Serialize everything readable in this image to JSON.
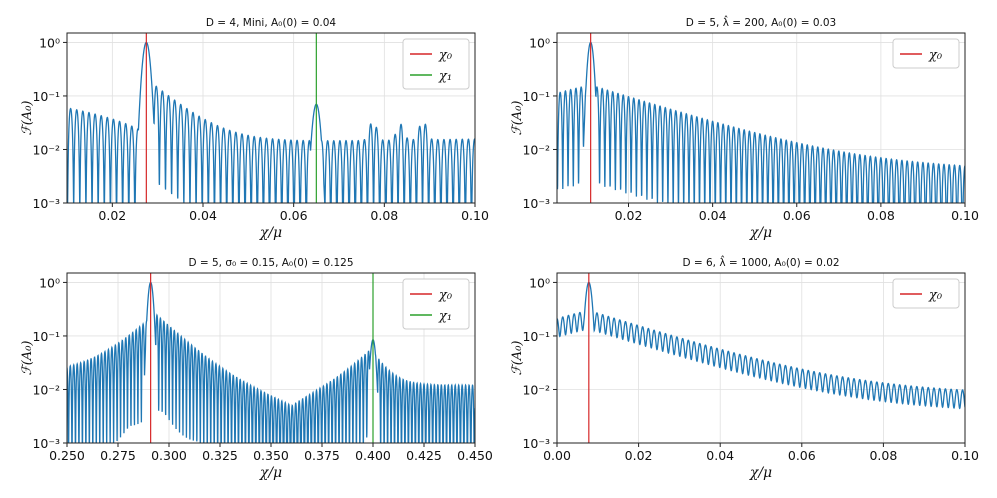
{
  "figure": {
    "description_free": true
  },
  "colors": {
    "series": "#1f77b4",
    "chi0": "#d62728",
    "chi1": "#2ca02c",
    "grid": "#e0e0e0"
  },
  "chart_data": [
    {
      "type": "line",
      "title": "D = 4, Mini, A₀(0) = 0.04",
      "xlabel": "χ/μ",
      "ylabel": "ℱ(A₀)",
      "yscale": "log",
      "xlim": [
        0.01,
        0.1
      ],
      "ylim": [
        0.001,
        1.5
      ],
      "xticks": [
        0.02,
        0.04,
        0.06,
        0.08,
        0.1
      ],
      "xtick_labels": [
        "0.02",
        "0.04",
        "0.06",
        "0.08",
        "0.10"
      ],
      "yticks": [
        0.001,
        0.01,
        0.1,
        1
      ],
      "ytick_labels": [
        "10⁻³",
        "10⁻²",
        "10⁻¹",
        "10⁰"
      ],
      "grid": true,
      "legend_position": "top-right",
      "vlines": [
        {
          "name": "χ₀",
          "x": 0.0275,
          "color": "#d62728"
        },
        {
          "name": "χ₁",
          "x": 0.065,
          "color": "#2ca02c"
        }
      ],
      "model": {
        "peaks": [
          {
            "x": 0.0275,
            "h": 1.0,
            "w": 0.0009
          },
          {
            "x": 0.065,
            "h": 0.07,
            "w": 0.0009
          }
        ],
        "floor_left": {
          "start": 0.06,
          "end": 0.02
        },
        "floor_right": 0.012,
        "period": 0.00135,
        "extra_bumps": [
          {
            "x": 0.0775,
            "h": 0.02,
            "w": 0.001
          },
          {
            "x": 0.0885,
            "h": 0.02,
            "w": 0.001
          },
          {
            "x": 0.0835,
            "h": 0.015,
            "w": 0.001
          }
        ]
      }
    },
    {
      "type": "line",
      "title": "D = 5, λ̂ = 200, A₀(0) = 0.03",
      "xlabel": "χ/μ",
      "ylabel": "ℱ(A₀)",
      "yscale": "log",
      "xlim": [
        0.003,
        0.1
      ],
      "ylim": [
        0.001,
        1.5
      ],
      "xticks": [
        0.02,
        0.04,
        0.06,
        0.08,
        0.1
      ],
      "xtick_labels": [
        "0.02",
        "0.04",
        "0.06",
        "0.08",
        "0.10"
      ],
      "yticks": [
        0.001,
        0.01,
        0.1,
        1
      ],
      "ytick_labels": [
        "10⁻³",
        "10⁻²",
        "10⁻¹",
        "10⁰"
      ],
      "grid": true,
      "legend_position": "top-right",
      "vlines": [
        {
          "name": "χ₀",
          "x": 0.011,
          "color": "#d62728"
        }
      ],
      "model": {
        "peaks": [
          {
            "x": 0.011,
            "h": 1.0,
            "w": 0.0008
          }
        ],
        "decay": {
          "start": 0.16,
          "end": 0.004
        },
        "period": 0.00125,
        "extra_bumps": []
      }
    },
    {
      "type": "line",
      "title": "D = 5, σ₀ = 0.15, A₀(0) = 0.125",
      "xlabel": "χ/μ",
      "ylabel": "ℱ(A₀)",
      "yscale": "log",
      "xlim": [
        0.25,
        0.45
      ],
      "ylim": [
        0.001,
        1.5
      ],
      "xticks": [
        0.25,
        0.275,
        0.3,
        0.325,
        0.35,
        0.375,
        0.4,
        0.425,
        0.45
      ],
      "xtick_labels": [
        "0.250",
        "0.275",
        "0.300",
        "0.325",
        "0.350",
        "0.375",
        "0.400",
        "0.425",
        "0.450"
      ],
      "yticks": [
        0.001,
        0.01,
        0.1,
        1
      ],
      "ytick_labels": [
        "10⁻³",
        "10⁻²",
        "10⁻¹",
        "10⁰"
      ],
      "grid": true,
      "legend_position": "top-right",
      "vlines": [
        {
          "name": "χ₀",
          "x": 0.291,
          "color": "#d62728"
        },
        {
          "name": "χ₁",
          "x": 0.4,
          "color": "#2ca02c"
        }
      ],
      "model": {
        "peaks": [
          {
            "x": 0.291,
            "h": 1.0,
            "w": 0.0015
          },
          {
            "x": 0.4,
            "h": 0.085,
            "w": 0.0015
          }
        ],
        "valley": {
          "x": 0.36,
          "h": 0.004
        },
        "period": 0.0017,
        "extra_bumps": []
      }
    },
    {
      "type": "line",
      "title": "D = 6, λ̂ = 1000, A₀(0) = 0.02",
      "xlabel": "χ/μ",
      "ylabel": "ℱ(A₀)",
      "yscale": "log",
      "xlim": [
        0.0,
        0.1
      ],
      "ylim": [
        0.001,
        1.5
      ],
      "xticks": [
        0.0,
        0.02,
        0.04,
        0.06,
        0.08,
        0.1
      ],
      "xtick_labels": [
        "0.00",
        "0.02",
        "0.04",
        "0.06",
        "0.08",
        "0.10"
      ],
      "yticks": [
        0.001,
        0.01,
        0.1,
        1
      ],
      "ytick_labels": [
        "10⁻³",
        "10⁻²",
        "10⁻¹",
        "10⁰"
      ],
      "grid": true,
      "legend_position": "top-right",
      "vlines": [
        {
          "name": "χ₀",
          "x": 0.0078,
          "color": "#d62728"
        }
      ],
      "model": {
        "peaks": [
          {
            "x": 0.0078,
            "h": 1.0,
            "w": 0.0009
          }
        ],
        "decay": {
          "start": 0.3,
          "end": 0.008
        },
        "period": 0.0014,
        "extra_bumps": []
      }
    }
  ]
}
